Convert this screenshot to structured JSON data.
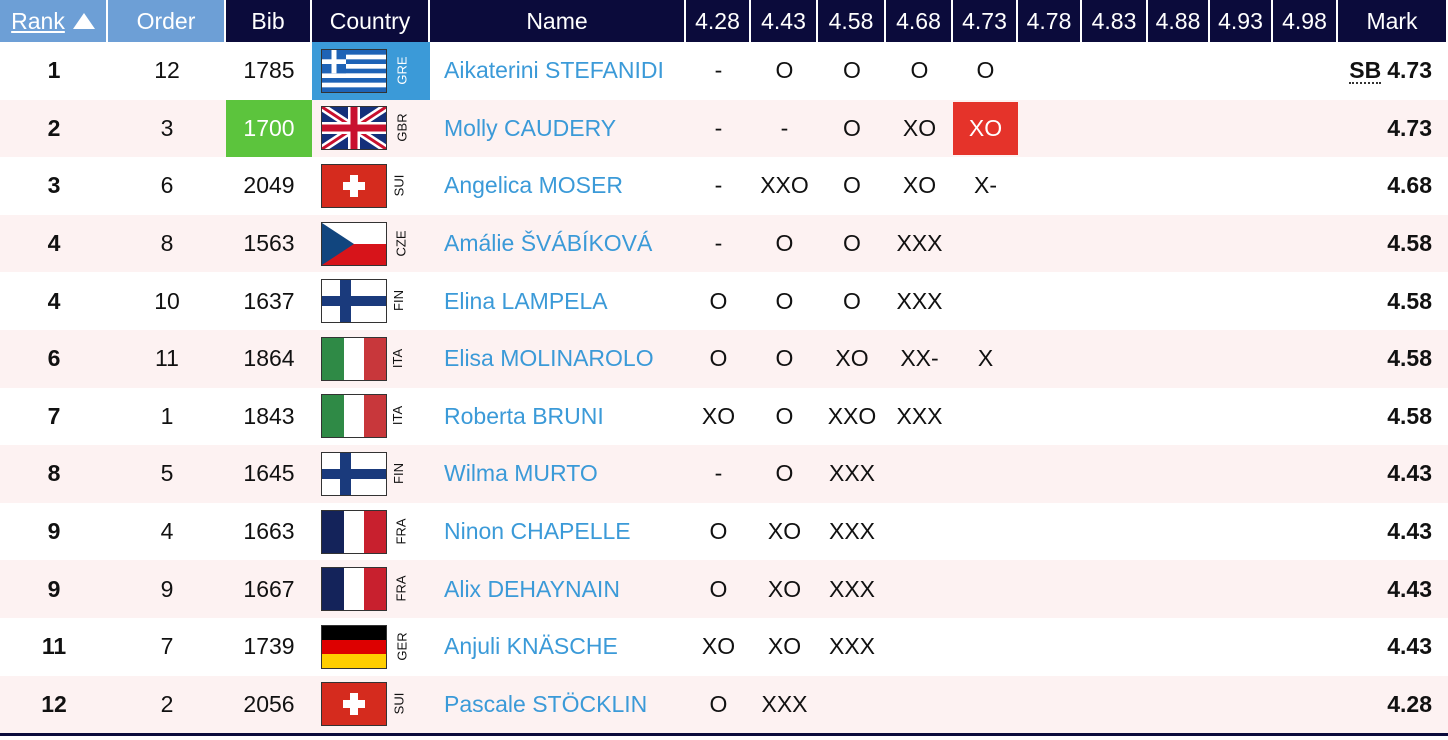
{
  "header": {
    "rank": "Rank",
    "order": "Order",
    "bib": "Bib",
    "country": "Country",
    "name": "Name",
    "heights": [
      "4.28",
      "4.43",
      "4.58",
      "4.68",
      "4.73",
      "4.78",
      "4.83",
      "4.88",
      "4.93",
      "4.98"
    ],
    "mark": "Mark"
  },
  "rows": [
    {
      "rank": "1",
      "order": "12",
      "bib": "1785",
      "country": "GRE",
      "name": "Aikaterini STEFANIDI",
      "attempts": [
        "-",
        "O",
        "O",
        "O",
        "O"
      ],
      "note": "SB",
      "mark": "4.73"
    },
    {
      "rank": "2",
      "order": "3",
      "bib": "1700",
      "country": "GBR",
      "name": "Molly CAUDERY",
      "attempts": [
        "-",
        "-",
        "O",
        "XO",
        "XO"
      ],
      "mark": "4.73"
    },
    {
      "rank": "3",
      "order": "6",
      "bib": "2049",
      "country": "SUI",
      "name": "Angelica MOSER",
      "attempts": [
        "-",
        "XXO",
        "O",
        "XO",
        "X-"
      ],
      "mark": "4.68"
    },
    {
      "rank": "4",
      "order": "8",
      "bib": "1563",
      "country": "CZE",
      "name": "Amálie ŠVÁBÍKOVÁ",
      "attempts": [
        "-",
        "O",
        "O",
        "XXX"
      ],
      "mark": "4.58"
    },
    {
      "rank": "4",
      "order": "10",
      "bib": "1637",
      "country": "FIN",
      "name": "Elina LAMPELA",
      "attempts": [
        "O",
        "O",
        "O",
        "XXX"
      ],
      "mark": "4.58"
    },
    {
      "rank": "6",
      "order": "11",
      "bib": "1864",
      "country": "ITA",
      "name": "Elisa MOLINAROLO",
      "attempts": [
        "O",
        "O",
        "XO",
        "XX-",
        "X"
      ],
      "mark": "4.58"
    },
    {
      "rank": "7",
      "order": "1",
      "bib": "1843",
      "country": "ITA",
      "name": "Roberta BRUNI",
      "attempts": [
        "XO",
        "O",
        "XXO",
        "XXX"
      ],
      "mark": "4.58"
    },
    {
      "rank": "8",
      "order": "5",
      "bib": "1645",
      "country": "FIN",
      "name": "Wilma MURTO",
      "attempts": [
        "-",
        "O",
        "XXX"
      ],
      "mark": "4.43"
    },
    {
      "rank": "9",
      "order": "4",
      "bib": "1663",
      "country": "FRA",
      "name": "Ninon CHAPELLE",
      "attempts": [
        "O",
        "XO",
        "XXX"
      ],
      "mark": "4.43"
    },
    {
      "rank": "9",
      "order": "9",
      "bib": "1667",
      "country": "FRA",
      "name": "Alix DEHAYNAIN",
      "attempts": [
        "O",
        "XO",
        "XXX"
      ],
      "mark": "4.43"
    },
    {
      "rank": "11",
      "order": "7",
      "bib": "1739",
      "country": "GER",
      "name": "Anjuli KNÄSCHE",
      "attempts": [
        "XO",
        "XO",
        "XXX"
      ],
      "mark": "4.43"
    },
    {
      "rank": "12",
      "order": "2",
      "bib": "2056",
      "country": "SUI",
      "name": "Pascale STÖCKLIN",
      "attempts": [
        "O",
        "XXX"
      ],
      "mark": "4.28"
    }
  ]
}
